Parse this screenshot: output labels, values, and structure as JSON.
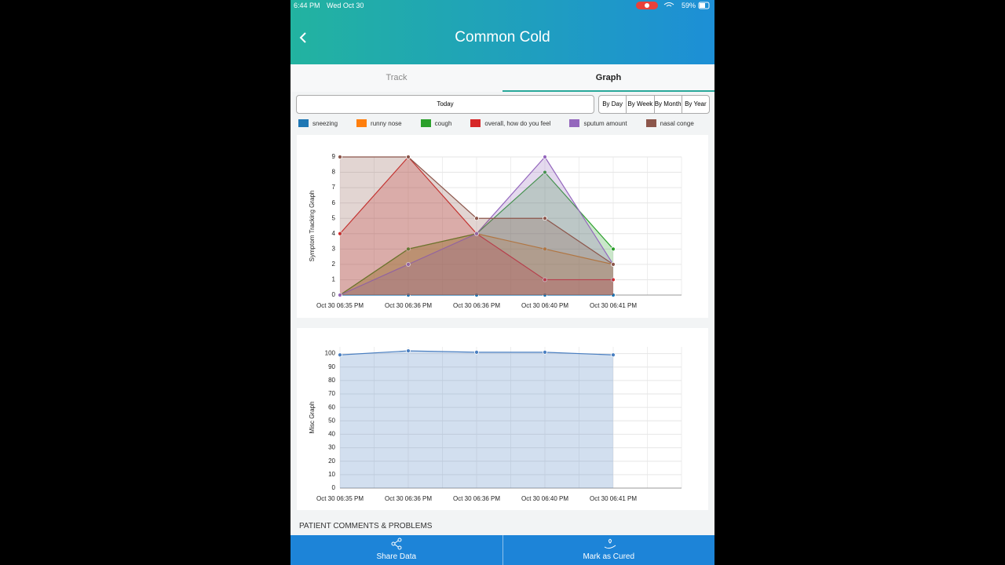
{
  "status_bar": {
    "time": "6:44 PM",
    "date": "Wed Oct 30",
    "battery": "59%"
  },
  "header": {
    "title": "Common Cold"
  },
  "tabs": [
    "Track",
    "Graph"
  ],
  "range": {
    "label": "Today",
    "buttons": [
      "By Day",
      "By Week",
      "By Month",
      "By Year"
    ]
  },
  "chart_data": [
    {
      "type": "area",
      "y_label": "Symptom Tracking Graph",
      "categories": [
        "Oct 30 06:35 PM",
        "Oct 30 06:36 PM",
        "Oct 30 06:36 PM",
        "Oct 30 06:40 PM",
        "Oct 30 06:41 PM"
      ],
      "ylim": [
        0,
        9
      ],
      "yticks": [
        0,
        1,
        2,
        3,
        4,
        5,
        6,
        7,
        8,
        9
      ],
      "grid": true,
      "series": [
        {
          "name": "sneezing",
          "color": "#1f77b4",
          "values": [
            0,
            0,
            0,
            0,
            0
          ]
        },
        {
          "name": "runny nose",
          "color": "#ff7f0e",
          "values": [
            0,
            3,
            4,
            3,
            2
          ]
        },
        {
          "name": "cough",
          "color": "#2ca02c",
          "values": [
            0,
            3,
            4,
            8,
            3
          ]
        },
        {
          "name": "overall, how do you feel",
          "color": "#d62728",
          "values": [
            4,
            9,
            4,
            1,
            1
          ]
        },
        {
          "name": "sputum amount",
          "color": "#9467bd",
          "values": [
            0,
            2,
            4,
            9,
            2
          ]
        },
        {
          "name": "nasal conge",
          "color": "#8c564b",
          "values": [
            9,
            9,
            5,
            5,
            2
          ]
        }
      ]
    },
    {
      "type": "area",
      "y_label": "Misc Graph",
      "categories": [
        "Oct 30 06:35 PM",
        "Oct 30 06:36 PM",
        "Oct 30 06:36 PM",
        "Oct 30 06:40 PM",
        "Oct 30 06:41 PM"
      ],
      "ylim": [
        0,
        105
      ],
      "yticks": [
        0,
        10,
        20,
        30,
        40,
        50,
        60,
        70,
        80,
        90,
        100
      ],
      "grid": true,
      "series": [
        {
          "color": "#4a7fc1",
          "values": [
            99,
            102,
            101,
            101,
            99
          ]
        }
      ]
    }
  ],
  "comments_title": "PATIENT COMMENTS & PROBLEMS",
  "actions": [
    "Share Data",
    "Mark as Cured"
  ]
}
